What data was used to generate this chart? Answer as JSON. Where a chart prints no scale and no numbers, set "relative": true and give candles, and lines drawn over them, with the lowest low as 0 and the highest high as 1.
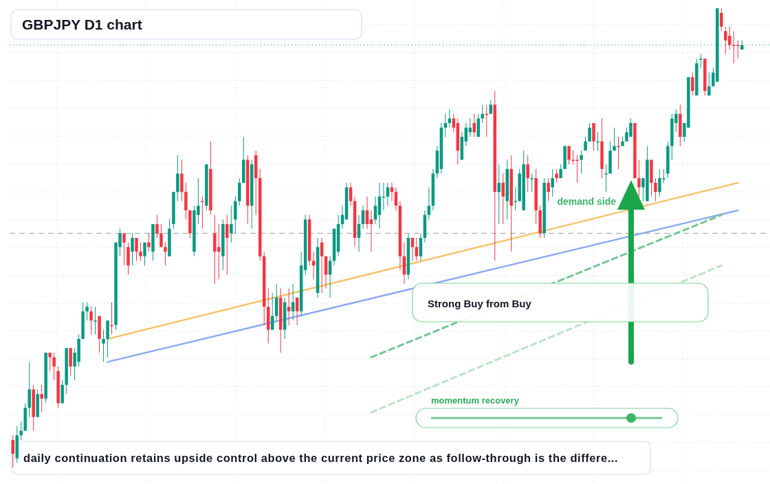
{
  "chart_data": {
    "type": "candlestick",
    "title": "GBPJPY D1 chart",
    "relative": true,
    "grid": true,
    "categories": [
      null,
      null,
      null,
      null,
      null,
      null,
      null,
      null,
      null,
      null,
      null,
      null,
      null,
      null,
      null,
      null,
      null,
      null,
      null,
      null,
      null,
      null,
      null,
      null,
      null,
      null,
      null,
      null,
      null,
      null,
      null,
      null,
      null,
      null,
      null,
      null,
      null,
      null,
      null,
      null,
      null,
      null,
      null,
      null,
      null,
      null,
      null,
      null,
      null,
      null,
      null,
      null,
      null,
      null,
      null,
      null,
      null,
      null,
      null,
      null,
      null,
      null,
      null,
      null,
      null,
      null,
      null,
      null,
      null,
      null,
      null,
      null,
      null,
      null,
      null,
      null,
      null,
      null,
      null,
      null,
      null,
      null,
      null,
      null,
      null,
      null,
      null,
      null,
      null,
      null,
      null,
      null,
      null,
      null,
      null,
      null,
      null,
      null,
      null,
      null,
      null,
      null,
      null,
      null,
      null,
      null,
      null,
      null,
      null,
      null,
      null,
      null,
      null,
      null,
      null,
      null,
      null,
      null,
      null,
      null,
      null,
      null,
      null,
      null,
      null,
      null,
      null,
      null,
      null,
      null,
      null,
      null,
      null,
      null,
      null,
      null,
      null,
      null,
      null,
      null,
      null,
      null,
      null,
      null,
      null,
      null,
      null,
      null,
      null,
      null,
      null,
      null,
      null,
      null,
      null,
      null,
      null,
      null,
      null,
      null,
      null,
      null,
      null,
      null,
      null,
      null,
      null,
      null,
      null,
      null,
      null,
      null,
      null,
      null,
      null,
      null,
      null,
      null
    ],
    "ohlc": [
      [
        0.06,
        0.07,
        0,
        0.03
      ],
      [
        0.02,
        0.09,
        0.01,
        0.07
      ],
      [
        0.07,
        0.1,
        0.06,
        0.08
      ],
      [
        0.08,
        0.14,
        0.08,
        0.13
      ],
      [
        0.13,
        0.23,
        0.11,
        0.17
      ],
      [
        0.17,
        0.18,
        0.08,
        0.11
      ],
      [
        0.11,
        0.17,
        0.11,
        0.16
      ],
      [
        0.16,
        0.18,
        0.12,
        0.15
      ],
      [
        0.15,
        0.25,
        0.14,
        0.25
      ],
      [
        0.25,
        0.25,
        0.21,
        0.24
      ],
      [
        0.24,
        0.25,
        0.19,
        0.22
      ],
      [
        0.21,
        0.22,
        0.13,
        0.14
      ],
      [
        0.14,
        0.19,
        0.14,
        0.18
      ],
      [
        0.18,
        0.26,
        0.16,
        0.26
      ],
      [
        0.26,
        0.26,
        0.2,
        0.22
      ],
      [
        0.22,
        0.26,
        0.19,
        0.25
      ],
      [
        0.23,
        0.29,
        0.22,
        0.28
      ],
      [
        0.28,
        0.36,
        0.28,
        0.34
      ],
      [
        0.34,
        0.36,
        0.32,
        0.35
      ],
      [
        0.34,
        0.35,
        0.29,
        0.32
      ],
      [
        0.32,
        0.35,
        0.29,
        0.32
      ],
      [
        0.33,
        0.33,
        0.25,
        0.28
      ],
      [
        0.27,
        0.3,
        0.23,
        0.28
      ],
      [
        0.28,
        0.32,
        0.24,
        0.32
      ],
      [
        0.31,
        0.36,
        0.29,
        0.308
      ],
      [
        0.31,
        0.49,
        0.3,
        0.49
      ],
      [
        0.48,
        0.52,
        0.46,
        0.51
      ],
      [
        0.51,
        0.51,
        0.44,
        0.49
      ],
      [
        0.48,
        0.49,
        0.42,
        0.44
      ],
      [
        0.47,
        0.51,
        0.44,
        0.5
      ],
      [
        0.5,
        0.5,
        0.45,
        0.47
      ],
      [
        0.47,
        0.49,
        0.45,
        0.46
      ],
      [
        0.46,
        0.49,
        0.44,
        0.49
      ],
      [
        0.49,
        0.51,
        0.47,
        0.48
      ],
      [
        0.47,
        0.53,
        0.45,
        0.53
      ],
      [
        0.53,
        0.55,
        0.5,
        0.51
      ],
      [
        0.51,
        0.53,
        0.48,
        0.48
      ],
      [
        0.48,
        0.49,
        0.44,
        0.47
      ],
      [
        0.46,
        0.54,
        0.46,
        0.52
      ],
      [
        0.53,
        0.6,
        0.52,
        0.6
      ],
      [
        0.6,
        0.68,
        0.58,
        0.64
      ],
      [
        0.64,
        0.67,
        0.58,
        0.6
      ],
      [
        0.6,
        0.62,
        0.54,
        0.56
      ],
      [
        0.56,
        0.56,
        0.5,
        0.51
      ],
      [
        0.47,
        0.57,
        0.46,
        0.56
      ],
      [
        0.55,
        0.63,
        0.53,
        0.57
      ],
      [
        0.58,
        0.59,
        0.52,
        0.578
      ],
      [
        0.57,
        0.66,
        0.56,
        0.66
      ],
      [
        0.65,
        0.71,
        0.55,
        0.56
      ],
      [
        0.51,
        0.55,
        0.4,
        0.47
      ],
      [
        0.48,
        0.53,
        0.41,
        0.47
      ],
      [
        0.46,
        0.54,
        0.43,
        0.53
      ],
      [
        0.53,
        0.55,
        0.42,
        0.5
      ],
      [
        0.51,
        0.57,
        0.49,
        0.53
      ],
      [
        0.54,
        0.59,
        0.51,
        0.58
      ],
      [
        0.58,
        0.63,
        0.57,
        0.62
      ],
      [
        0.62,
        0.72,
        0.62,
        0.67
      ],
      [
        0.67,
        0.68,
        0.53,
        0.57
      ],
      [
        0.57,
        0.67,
        0.52,
        0.66
      ],
      [
        0.68,
        0.69,
        0.55,
        0.63
      ],
      [
        0.63,
        0.65,
        0.45,
        0.46
      ],
      [
        0.46,
        0.47,
        0.31,
        0.35
      ],
      [
        0.35,
        0.39,
        0.27,
        0.3
      ],
      [
        0.3,
        0.38,
        0.3,
        0.33
      ],
      [
        0.33,
        0.4,
        0.32,
        0.37
      ],
      [
        0.37,
        0.39,
        0.25,
        0.3
      ],
      [
        0.3,
        0.37,
        0.28,
        0.36
      ],
      [
        0.35,
        0.39,
        0.31,
        0.34
      ],
      [
        0.34,
        0.4,
        0.32,
        0.36
      ],
      [
        0.37,
        0.37,
        0.31,
        0.34
      ],
      [
        0.34,
        0.47,
        0.33,
        0.44
      ],
      [
        0.43,
        0.55,
        0.42,
        0.54
      ],
      [
        0.54,
        0.55,
        0.44,
        0.45
      ],
      [
        0.45,
        0.47,
        0.41,
        0.44
      ],
      [
        0.38,
        0.5,
        0.37,
        0.48
      ],
      [
        0.49,
        0.5,
        0.38,
        0.46
      ],
      [
        0.46,
        0.46,
        0.39,
        0.42
      ],
      [
        0.42,
        0.46,
        0.37,
        0.45
      ],
      [
        0.45,
        0.52,
        0.44,
        0.52
      ],
      [
        0.47,
        0.55,
        0.46,
        0.53
      ],
      [
        0.53,
        0.57,
        0.52,
        0.55
      ],
      [
        0.54,
        0.62,
        0.54,
        0.61
      ],
      [
        0.61,
        0.62,
        0.57,
        0.58
      ],
      [
        0.58,
        0.59,
        0.48,
        0.5
      ],
      [
        0.5,
        0.55,
        0.47,
        0.53
      ],
      [
        0.53,
        0.57,
        0.52,
        0.56
      ],
      [
        0.56,
        0.59,
        0.52,
        0.53
      ],
      [
        0.54,
        0.56,
        0.47,
        0.53
      ],
      [
        0.54,
        0.59,
        0.53,
        0.57
      ],
      [
        0.55,
        0.62,
        0.52,
        0.59
      ],
      [
        0.59,
        0.62,
        0.56,
        0.59
      ],
      [
        0.59,
        0.62,
        0.57,
        0.61
      ],
      [
        0.61,
        0.62,
        0.58,
        0.6
      ],
      [
        0.6,
        0.61,
        0.56,
        0.57
      ],
      [
        0.57,
        0.58,
        0.43,
        0.46
      ],
      [
        0.46,
        0.49,
        0.4,
        0.42
      ],
      [
        0.42,
        0.51,
        0.41,
        0.5
      ],
      [
        0.5,
        0.5,
        0.45,
        0.48
      ],
      [
        0.48,
        0.5,
        0.45,
        0.46
      ],
      [
        0.46,
        0.51,
        0.45,
        0.5
      ],
      [
        0.5,
        0.56,
        0.49,
        0.55
      ],
      [
        0.55,
        0.61,
        0.54,
        0.57
      ],
      [
        0.57,
        0.65,
        0.56,
        0.64
      ],
      [
        0.64,
        0.7,
        0.63,
        0.69
      ],
      [
        0.65,
        0.75,
        0.64,
        0.74
      ],
      [
        0.74,
        0.77,
        0.72,
        0.75
      ],
      [
        0.75,
        0.78,
        0.74,
        0.76
      ],
      [
        0.76,
        0.77,
        0.73,
        0.74
      ],
      [
        0.75,
        0.76,
        0.66,
        0.69
      ],
      [
        0.67,
        0.73,
        0.67,
        0.72
      ],
      [
        0.71,
        0.75,
        0.7,
        0.74
      ],
      [
        0.73,
        0.76,
        0.72,
        0.74
      ],
      [
        0.75,
        0.77,
        0.72,
        0.73
      ],
      [
        0.72,
        0.77,
        0.72,
        0.76
      ],
      [
        0.76,
        0.79,
        0.75,
        0.77
      ],
      [
        0.77,
        0.79,
        0.72,
        0.768
      ],
      [
        0.77,
        0.8,
        0.77,
        0.79
      ],
      [
        0.79,
        0.82,
        0.45,
        0.6
      ],
      [
        0.6,
        0.66,
        0.53,
        0.62
      ],
      [
        0.62,
        0.64,
        0.53,
        0.59
      ],
      [
        0.58,
        0.67,
        0.54,
        0.65
      ],
      [
        0.65,
        0.68,
        0.47,
        0.57
      ],
      [
        0.58,
        0.61,
        0.56,
        0.58
      ],
      [
        0.58,
        0.65,
        0.58,
        0.64
      ],
      [
        0.56,
        0.69,
        0.56,
        0.66
      ],
      [
        0.66,
        0.68,
        0.6,
        0.63
      ],
      [
        0.63,
        0.64,
        0.6,
        0.63
      ],
      [
        0.63,
        0.65,
        0.53,
        0.56
      ],
      [
        0.56,
        0.57,
        0.5,
        0.51
      ],
      [
        0.51,
        0.63,
        0.5,
        0.62
      ],
      [
        0.62,
        0.63,
        0.58,
        0.6
      ],
      [
        0.61,
        0.65,
        0.59,
        0.63
      ],
      [
        0.64,
        0.65,
        0.62,
        0.63
      ],
      [
        0.63,
        0.66,
        0.63,
        0.65
      ],
      [
        0.65,
        0.7,
        0.65,
        0.7
      ],
      [
        0.7,
        0.7,
        0.66,
        0.67
      ],
      [
        0.67,
        0.69,
        0.66,
        0.668
      ],
      [
        0.67,
        0.68,
        0.62,
        0.668
      ],
      [
        0.67,
        0.69,
        0.64,
        0.68
      ],
      [
        0.69,
        0.72,
        0.69,
        0.71
      ],
      [
        0.71,
        0.75,
        0.71,
        0.74
      ],
      [
        0.75,
        0.75,
        0.69,
        0.71
      ],
      [
        0.71,
        0.73,
        0.69,
        0.71
      ],
      [
        0.71,
        0.76,
        0.63,
        0.65
      ],
      [
        0.64,
        0.66,
        0.6,
        0.64
      ],
      [
        0.64,
        0.71,
        0.64,
        0.69
      ],
      [
        0.69,
        0.74,
        0.69,
        0.7
      ],
      [
        0.7,
        0.72,
        0.65,
        0.698
      ],
      [
        0.7,
        0.72,
        0.7,
        0.71
      ],
      [
        0.71,
        0.74,
        0.71,
        0.73
      ],
      [
        0.72,
        0.76,
        0.72,
        0.75
      ],
      [
        0.75,
        0.75,
        0.63,
        0.63
      ],
      [
        0.63,
        0.67,
        0.59,
        0.61
      ],
      [
        0.61,
        0.63,
        0.58,
        0.63
      ],
      [
        0.58,
        0.7,
        0.58,
        0.67
      ],
      [
        0.67,
        0.67,
        0.59,
        0.62
      ],
      [
        0.62,
        0.63,
        0.58,
        0.6
      ],
      [
        0.6,
        0.65,
        0.59,
        0.63
      ],
      [
        0.63,
        0.65,
        0.62,
        0.63
      ],
      [
        0.64,
        0.71,
        0.63,
        0.7
      ],
      [
        0.7,
        0.77,
        0.67,
        0.76
      ],
      [
        0.75,
        0.78,
        0.73,
        0.77
      ],
      [
        0.77,
        0.79,
        0.7,
        0.72
      ],
      [
        0.72,
        0.75,
        0.71,
        0.75
      ],
      [
        0.74,
        0.85,
        0.74,
        0.85
      ],
      [
        0.85,
        0.86,
        0.81,
        0.82
      ],
      [
        0.81,
        0.89,
        0.81,
        0.88
      ],
      [
        0.89,
        0.9,
        0.87,
        0.89
      ],
      [
        0.89,
        0.89,
        0.81,
        0.82
      ],
      [
        0.81,
        0.86,
        0.81,
        0.83
      ],
      [
        0.83,
        0.87,
        0.83,
        0.86
      ],
      [
        0.84,
        1,
        0.84,
        1
      ],
      [
        0.99,
        1,
        0.95,
        0.96
      ],
      [
        0.95,
        0.96,
        0.9,
        0.93
      ],
      [
        0.94,
        0.96,
        0.91,
        0.92
      ],
      [
        0.92,
        0.95,
        0.88,
        0.918
      ],
      [
        0.92,
        0.93,
        0.89,
        0.918
      ],
      [
        0.91,
        0.93,
        0.91,
        0.92
      ]
    ],
    "series": [
      {
        "type": "line",
        "color": "#f6c46e",
        "values": [
          null,
          null,
          null,
          null,
          null,
          null,
          null,
          null,
          null,
          null,
          null,
          null,
          null,
          null,
          null,
          null,
          null,
          null,
          null,
          null,
          null,
          null,
          null,
          0.28,
          null,
          null,
          null,
          null,
          null,
          null,
          null,
          null,
          null,
          null,
          null,
          null,
          null,
          null,
          null,
          null,
          null,
          null,
          null,
          null,
          null,
          null,
          null,
          null,
          null,
          null,
          null,
          null,
          null,
          null,
          null,
          null,
          null,
          null,
          null,
          null,
          null,
          null,
          null,
          null,
          null,
          null,
          null,
          null,
          null,
          null,
          null,
          null,
          null,
          null,
          null,
          null,
          null,
          null,
          null,
          null,
          null,
          null,
          null,
          null,
          null,
          null,
          null,
          null,
          null,
          null,
          null,
          null,
          null,
          null,
          null,
          null,
          null,
          null,
          null,
          null,
          null,
          null,
          null,
          null,
          null,
          null,
          null,
          null,
          null,
          null,
          null,
          null,
          null,
          null,
          null,
          null,
          null,
          null,
          null,
          null,
          null,
          null,
          null,
          null,
          null,
          null,
          null,
          null,
          null,
          null,
          null,
          null,
          null,
          null,
          null,
          null,
          null,
          null,
          null,
          null,
          null,
          null,
          null,
          null,
          null,
          null,
          null,
          null,
          null,
          null,
          null,
          null,
          null,
          null,
          null,
          null,
          null,
          null,
          null,
          null,
          null,
          null,
          null,
          null,
          null,
          null,
          null,
          null,
          null,
          null,
          null,
          null,
          null,
          null,
          null,
          null,
          0.62,
          null
        ]
      },
      {
        "type": "line",
        "color": "#8eaaf2",
        "values": [
          null,
          null,
          null,
          null,
          null,
          null,
          null,
          null,
          null,
          null,
          null,
          null,
          null,
          null,
          null,
          null,
          null,
          null,
          null,
          null,
          null,
          null,
          null,
          0.23,
          null,
          null,
          null,
          null,
          null,
          null,
          null,
          null,
          null,
          null,
          null,
          null,
          null,
          null,
          null,
          null,
          null,
          null,
          null,
          null,
          null,
          null,
          null,
          null,
          null,
          null,
          null,
          null,
          null,
          null,
          null,
          null,
          null,
          null,
          null,
          null,
          null,
          null,
          null,
          null,
          null,
          null,
          null,
          null,
          null,
          null,
          null,
          null,
          null,
          null,
          null,
          null,
          null,
          null,
          null,
          null,
          null,
          null,
          null,
          null,
          null,
          null,
          null,
          null,
          null,
          null,
          null,
          null,
          null,
          null,
          null,
          null,
          null,
          null,
          null,
          null,
          null,
          null,
          null,
          null,
          null,
          null,
          null,
          null,
          null,
          null,
          null,
          null,
          null,
          null,
          null,
          null,
          null,
          null,
          null,
          null,
          null,
          null,
          null,
          null,
          null,
          null,
          null,
          null,
          null,
          null,
          null,
          null,
          null,
          null,
          null,
          null,
          null,
          null,
          null,
          null,
          null,
          null,
          null,
          null,
          null,
          null,
          null,
          null,
          null,
          null,
          null,
          null,
          null,
          null,
          null,
          null,
          null,
          null,
          null,
          null,
          null,
          null,
          null,
          null,
          null,
          null,
          null,
          null,
          null,
          null,
          null,
          null,
          null,
          null,
          null,
          null,
          0.56,
          null
        ]
      },
      {
        "type": "line",
        "color": "#72c792",
        "line_style": "dashed",
        "values": [
          null,
          null,
          null,
          null,
          null,
          null,
          null,
          null,
          null,
          null,
          null,
          null,
          null,
          null,
          null,
          null,
          null,
          null,
          null,
          null,
          null,
          null,
          null,
          null,
          null,
          null,
          null,
          null,
          null,
          null,
          null,
          null,
          null,
          null,
          null,
          null,
          null,
          null,
          null,
          null,
          null,
          null,
          null,
          null,
          null,
          null,
          null,
          null,
          null,
          null,
          null,
          null,
          null,
          null,
          null,
          null,
          null,
          null,
          null,
          null,
          null,
          null,
          null,
          null,
          null,
          null,
          null,
          null,
          null,
          null,
          null,
          null,
          null,
          null,
          null,
          null,
          null,
          null,
          null,
          null,
          null,
          null,
          null,
          null,
          null,
          null,
          null,
          0.24,
          null,
          null,
          null,
          null,
          null,
          null,
          null,
          null,
          null,
          null,
          null,
          null,
          null,
          null,
          null,
          null,
          null,
          null,
          null,
          null,
          null,
          null,
          null,
          null,
          null,
          null,
          null,
          null,
          null,
          null,
          null,
          null,
          null,
          null,
          null,
          null,
          null,
          null,
          null,
          null,
          null,
          null,
          null,
          null,
          null,
          null,
          null,
          null,
          null,
          null,
          null,
          null,
          null,
          null,
          null,
          null,
          null,
          null,
          null,
          null,
          null,
          null,
          null,
          null,
          null,
          null,
          null,
          null,
          null,
          null,
          null,
          null,
          null,
          null,
          null,
          null,
          null,
          null,
          null,
          null,
          null,
          null,
          null,
          null,
          0.55,
          null,
          null,
          null,
          null,
          null
        ]
      },
      {
        "type": "line",
        "color": "#b9e4c7",
        "line_style": "dashed",
        "values": [
          null,
          null,
          null,
          null,
          null,
          null,
          null,
          null,
          null,
          null,
          null,
          null,
          null,
          null,
          null,
          null,
          null,
          null,
          null,
          null,
          null,
          null,
          null,
          null,
          null,
          null,
          null,
          null,
          null,
          null,
          null,
          null,
          null,
          null,
          null,
          null,
          null,
          null,
          null,
          null,
          null,
          null,
          null,
          null,
          null,
          null,
          null,
          null,
          null,
          null,
          null,
          null,
          null,
          null,
          null,
          null,
          null,
          null,
          null,
          null,
          null,
          null,
          null,
          null,
          null,
          null,
          null,
          null,
          null,
          null,
          null,
          null,
          null,
          null,
          null,
          null,
          null,
          null,
          null,
          null,
          null,
          null,
          null,
          null,
          null,
          null,
          null,
          0.12,
          null,
          null,
          null,
          null,
          null,
          null,
          null,
          null,
          null,
          null,
          null,
          null,
          null,
          null,
          null,
          null,
          null,
          null,
          null,
          null,
          null,
          null,
          null,
          null,
          null,
          null,
          null,
          null,
          null,
          null,
          null,
          null,
          null,
          null,
          null,
          null,
          null,
          null,
          null,
          null,
          null,
          null,
          null,
          null,
          null,
          null,
          null,
          null,
          null,
          null,
          null,
          null,
          null,
          null,
          null,
          null,
          null,
          null,
          null,
          null,
          null,
          null,
          null,
          null,
          null,
          null,
          null,
          null,
          null,
          null,
          null,
          null,
          null,
          null,
          null,
          null,
          null,
          null,
          null,
          null,
          null,
          null,
          null,
          null,
          0.44,
          null,
          null,
          null,
          null,
          null
        ]
      }
    ],
    "ref_lines": [
      {
        "axis": "y",
        "value": 0.51,
        "color": "#9a9a9a",
        "line_style": "dashed"
      },
      {
        "axis": "y",
        "value": 0.92,
        "color": "#089981",
        "line_style": "dotted"
      }
    ],
    "annotations": [
      "demand side",
      "Strong Buy from Buy",
      "momentum recovery",
      "daily continuation retains upside control above the current price zone as follow-through is the differe..."
    ]
  }
}
